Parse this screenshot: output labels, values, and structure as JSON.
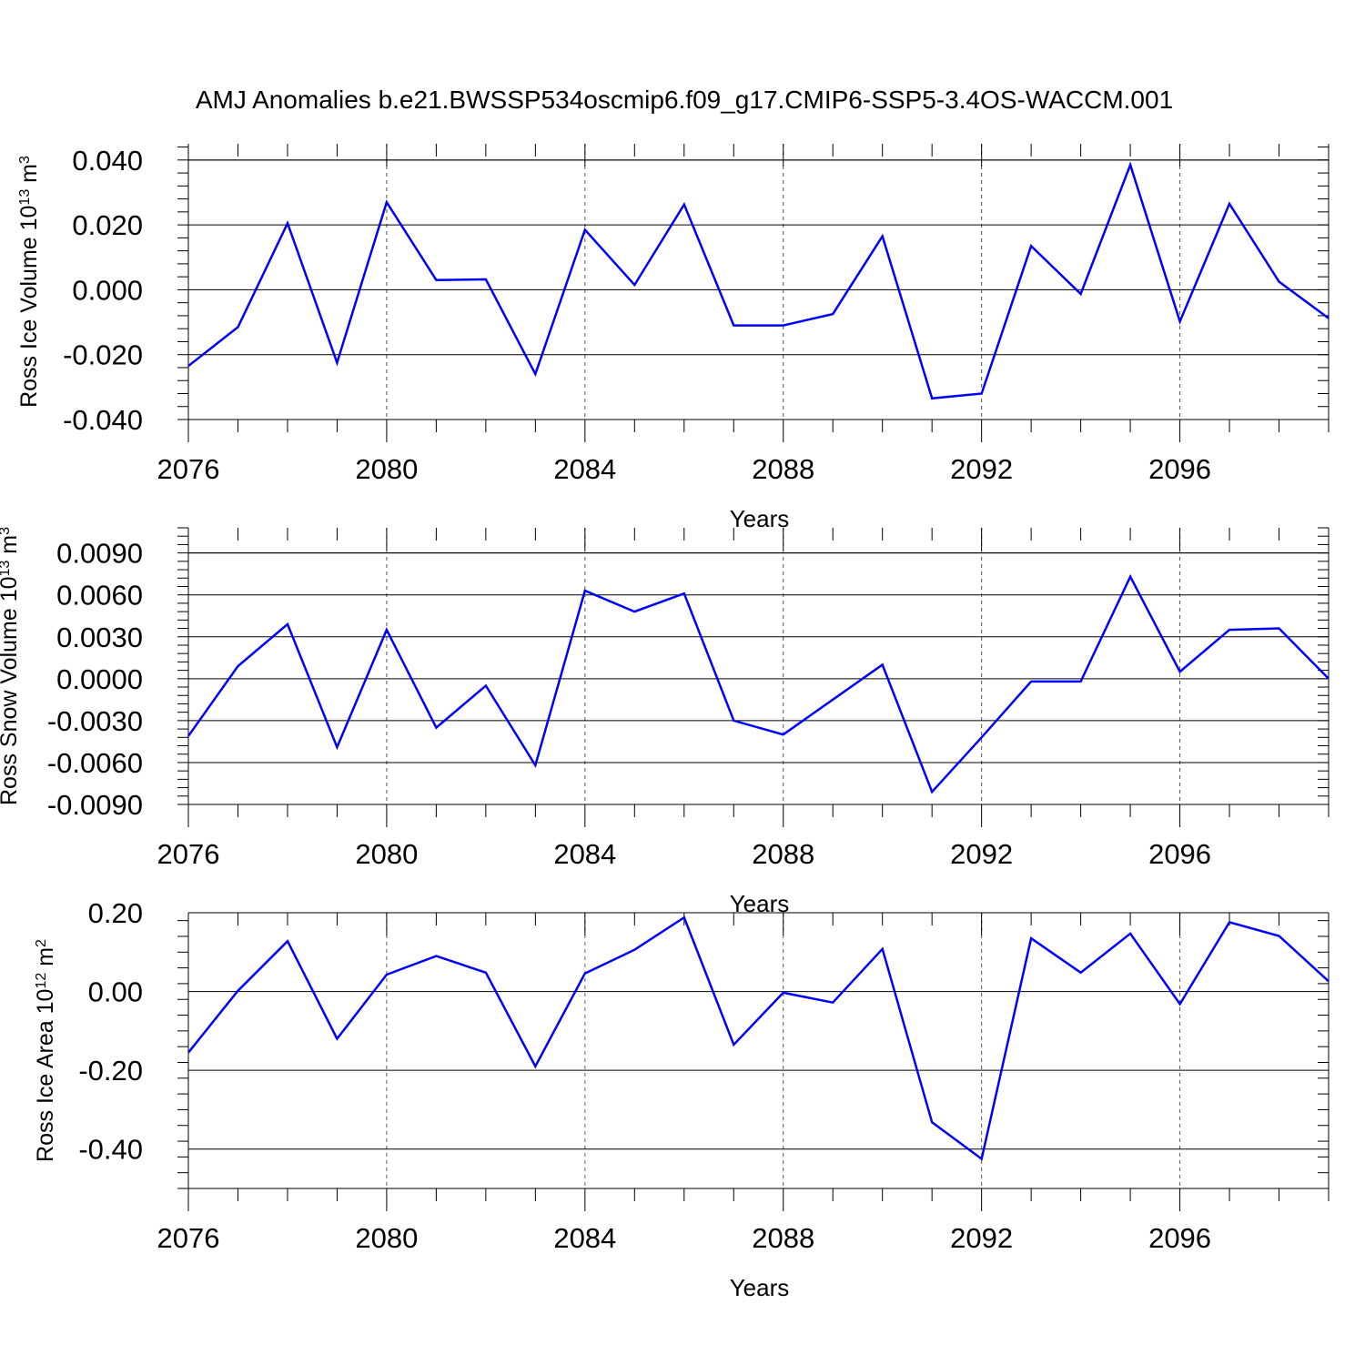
{
  "title": "AMJ Anomalies b.e21.BWSSP534oscmip6.f09_g17.CMIP6-SSP5-3.4OS-WACCM.001",
  "chart_data": [
    {
      "type": "line",
      "name": "ross-ice-volume",
      "xlabel": "Years",
      "ylabel": {
        "main": "Ross Ice Volume 10",
        "sup": "13",
        "unit": " m",
        "unit_sup": "3"
      },
      "xlim": [
        2076,
        2099
      ],
      "ylim": [
        -0.04,
        0.045
      ],
      "xticks": [
        2076,
        2080,
        2084,
        2088,
        2092,
        2096
      ],
      "xtick_labels": [
        "2076",
        "2080",
        "2084",
        "2088",
        "2092",
        "2096"
      ],
      "yticks": [
        -0.04,
        -0.02,
        0.0,
        0.02,
        0.04
      ],
      "ytick_labels": [
        "-0.040",
        "-0.020",
        "0.000",
        "0.020",
        "0.040"
      ],
      "x": [
        2076,
        2077,
        2078,
        2079,
        2080,
        2081,
        2082,
        2083,
        2084,
        2085,
        2086,
        2087,
        2088,
        2089,
        2090,
        2091,
        2092,
        2093,
        2094,
        2095,
        2096,
        2097,
        2098,
        2099
      ],
      "y": [
        -0.0235,
        -0.0115,
        0.0205,
        -0.0225,
        0.027,
        0.003,
        0.0032,
        -0.026,
        0.0185,
        0.0015,
        0.0263,
        -0.011,
        -0.011,
        -0.0075,
        0.0165,
        -0.0335,
        -0.032,
        0.0135,
        -0.0013,
        0.0385,
        -0.0098,
        0.0265,
        0.0025,
        -0.0088
      ]
    },
    {
      "type": "line",
      "name": "ross-snow-volume",
      "xlabel": "Years",
      "ylabel": {
        "main": "Ross Snow Volume 10",
        "sup": "13",
        "unit": " m",
        "unit_sup": "3"
      },
      "xlim": [
        2076,
        2099
      ],
      "ylim": [
        -0.009,
        0.0108
      ],
      "xticks": [
        2076,
        2080,
        2084,
        2088,
        2092,
        2096
      ],
      "xtick_labels": [
        "2076",
        "2080",
        "2084",
        "2088",
        "2092",
        "2096"
      ],
      "yticks": [
        -0.009,
        -0.006,
        -0.003,
        0.0,
        0.003,
        0.006,
        0.009
      ],
      "ytick_labels": [
        "-0.0090",
        "-0.0060",
        "-0.0030",
        "0.0000",
        "0.0030",
        "0.0060",
        "0.0090"
      ],
      "x": [
        2076,
        2077,
        2078,
        2079,
        2080,
        2081,
        2082,
        2083,
        2084,
        2085,
        2086,
        2087,
        2088,
        2089,
        2090,
        2091,
        2092,
        2093,
        2094,
        2095,
        2096,
        2097,
        2098,
        2099
      ],
      "y": [
        -0.0041,
        0.0009,
        0.0039,
        -0.0049,
        0.0035,
        -0.0035,
        -0.0005,
        -0.0062,
        0.0063,
        0.0048,
        0.0061,
        -0.003,
        -0.004,
        -0.0015,
        0.001,
        -0.0081,
        -0.0042,
        -0.0002,
        -0.0002,
        0.0073,
        0.0005,
        0.0035,
        0.0036,
        0.0
      ]
    },
    {
      "type": "line",
      "name": "ross-ice-area",
      "xlabel": "Years",
      "ylabel": {
        "main": "Ross Ice Area 10",
        "sup": "12",
        "unit": " m",
        "unit_sup": "2"
      },
      "xlim": [
        2076,
        2099
      ],
      "ylim": [
        -0.5,
        0.2
      ],
      "xticks": [
        2076,
        2080,
        2084,
        2088,
        2092,
        2096
      ],
      "xtick_labels": [
        "2076",
        "2080",
        "2084",
        "2088",
        "2092",
        "2096"
      ],
      "yticks": [
        -0.4,
        -0.2,
        0.0,
        0.2
      ],
      "ytick_labels": [
        "-0.40",
        "-0.20",
        "0.00",
        "0.20"
      ],
      "x": [
        2076,
        2077,
        2078,
        2079,
        2080,
        2081,
        2082,
        2083,
        2084,
        2085,
        2086,
        2087,
        2088,
        2089,
        2090,
        2091,
        2092,
        2093,
        2094,
        2095,
        2096,
        2097,
        2098,
        2099
      ],
      "y": [
        -0.155,
        0.002,
        0.128,
        -0.12,
        0.043,
        0.09,
        0.048,
        -0.19,
        0.046,
        0.106,
        0.188,
        -0.135,
        -0.003,
        -0.028,
        0.108,
        -0.332,
        -0.425,
        0.135,
        0.048,
        0.147,
        -0.032,
        0.176,
        0.141,
        0.026
      ]
    }
  ]
}
